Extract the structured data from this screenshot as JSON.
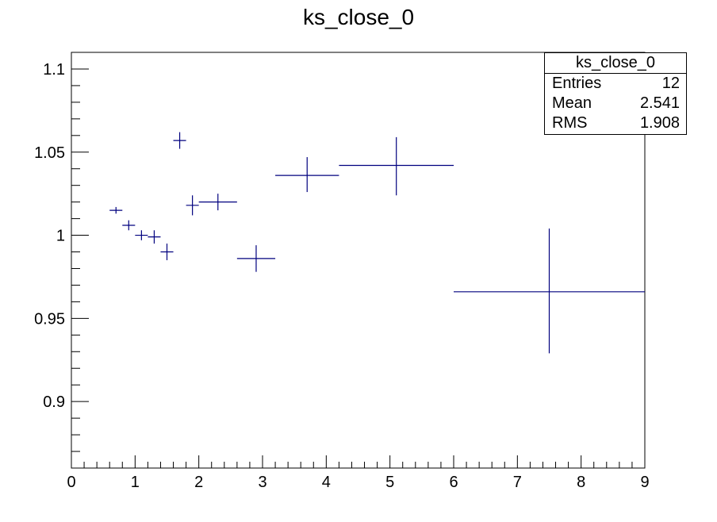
{
  "chart_data": {
    "type": "scatter",
    "title": "ks_close_0",
    "xlabel": "",
    "ylabel": "",
    "xlim": [
      0,
      9
    ],
    "ylim": [
      0.86,
      1.11
    ],
    "xticks": [
      0,
      1,
      2,
      3,
      4,
      5,
      6,
      7,
      8,
      9
    ],
    "yticks": [
      0.9,
      0.95,
      1,
      1.05,
      1.1
    ],
    "xtick_labels": [
      "0",
      "1",
      "2",
      "3",
      "4",
      "5",
      "6",
      "7",
      "8",
      "9"
    ],
    "ytick_labels": [
      "0.9",
      "0.95",
      "1",
      "1.05",
      "1.1"
    ],
    "grid": false,
    "series": [
      {
        "color": "#00007f",
        "points": [
          {
            "x": 0.7,
            "xlo": 0.6,
            "xhi": 0.8,
            "y": 1.015,
            "ylo": 1.013,
            "yhi": 1.017
          },
          {
            "x": 0.9,
            "xlo": 0.8,
            "xhi": 1.0,
            "y": 1.006,
            "ylo": 1.003,
            "yhi": 1.009
          },
          {
            "x": 1.1,
            "xlo": 1.0,
            "xhi": 1.2,
            "y": 1.0,
            "ylo": 0.997,
            "yhi": 1.003
          },
          {
            "x": 1.3,
            "xlo": 1.2,
            "xhi": 1.4,
            "y": 0.999,
            "ylo": 0.995,
            "yhi": 1.003
          },
          {
            "x": 1.5,
            "xlo": 1.4,
            "xhi": 1.6,
            "y": 0.99,
            "ylo": 0.985,
            "yhi": 0.995
          },
          {
            "x": 1.7,
            "xlo": 1.6,
            "xhi": 1.8,
            "y": 1.057,
            "ylo": 1.052,
            "yhi": 1.062
          },
          {
            "x": 1.9,
            "xlo": 1.8,
            "xhi": 2.0,
            "y": 1.018,
            "ylo": 1.012,
            "yhi": 1.024
          },
          {
            "x": 2.3,
            "xlo": 2.0,
            "xhi": 2.6,
            "y": 1.02,
            "ylo": 1.015,
            "yhi": 1.025
          },
          {
            "x": 2.9,
            "xlo": 2.6,
            "xhi": 3.2,
            "y": 0.986,
            "ylo": 0.978,
            "yhi": 0.994
          },
          {
            "x": 3.7,
            "xlo": 3.2,
            "xhi": 4.2,
            "y": 1.036,
            "ylo": 1.026,
            "yhi": 1.047
          },
          {
            "x": 5.1,
            "xlo": 4.2,
            "xhi": 6.0,
            "y": 1.042,
            "ylo": 1.024,
            "yhi": 1.059
          },
          {
            "x": 7.5,
            "xlo": 6.0,
            "xhi": 9.0,
            "y": 0.966,
            "ylo": 0.929,
            "yhi": 1.004
          }
        ]
      }
    ]
  },
  "stats": {
    "title": "ks_close_0",
    "entries_label": "Entries",
    "entries_value": "12",
    "mean_label": "Mean",
    "mean_value": "2.541",
    "rms_label": "RMS",
    "rms_value": "1.908"
  }
}
